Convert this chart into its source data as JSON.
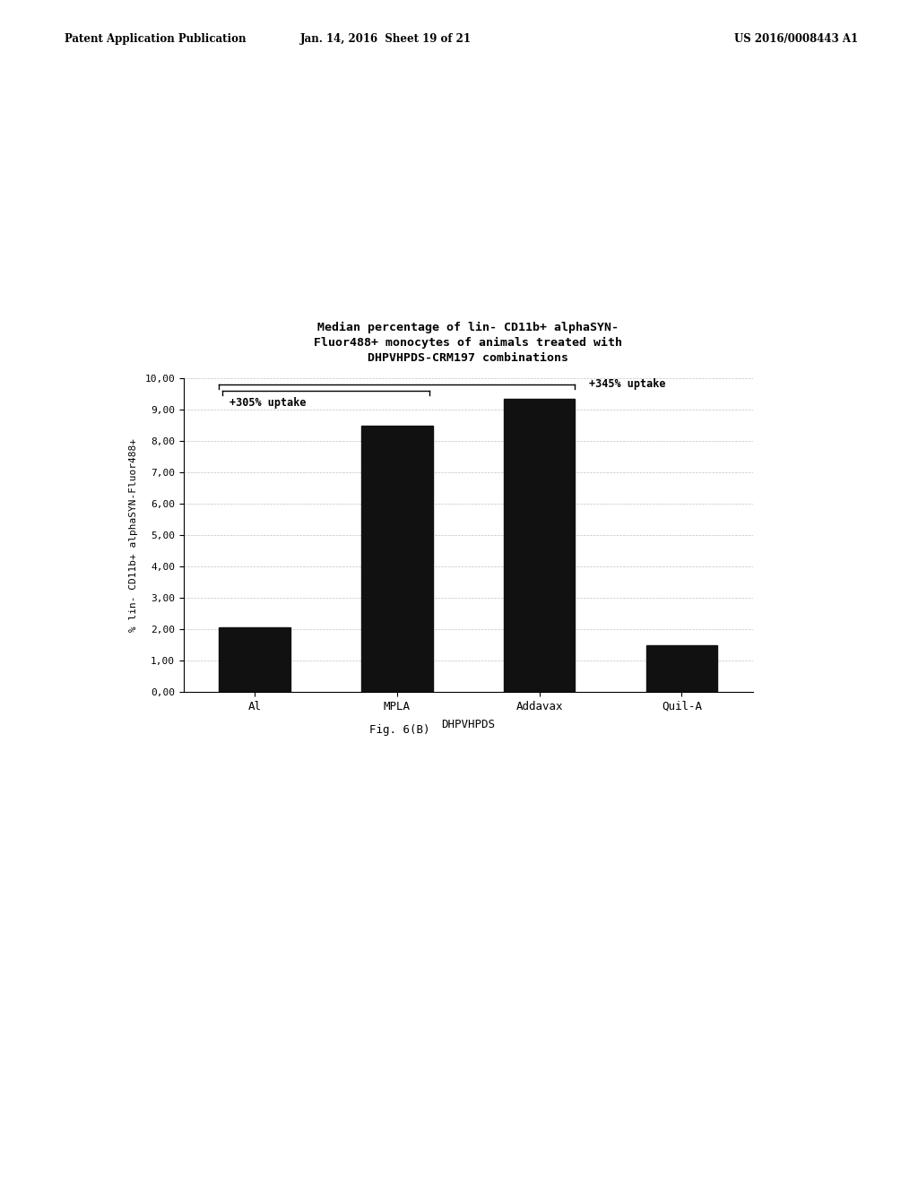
{
  "categories": [
    "Al",
    "MPLA",
    "Addavax",
    "Quil-A"
  ],
  "values": [
    2.05,
    8.5,
    9.35,
    1.5
  ],
  "bar_color": "#111111",
  "title_line1": "Median percentage of lin- CD11b+ alphaSYN-",
  "title_line2": "Fluor488+ monocytes of animals treated with",
  "title_line3": "DHPVHPDS-CRM197 combinations",
  "ylabel": "% lin- CD11b+ alphaSYN-Fluor488+",
  "xlabel": "DHPVHPDS",
  "ylim": [
    0,
    10
  ],
  "yticks": [
    0.0,
    1.0,
    2.0,
    3.0,
    4.0,
    5.0,
    6.0,
    7.0,
    8.0,
    9.0,
    10.0
  ],
  "ytick_labels": [
    "0,00",
    "1,00",
    "2,00",
    "3,00",
    "4,00",
    "5,00",
    "6,00",
    "7,00",
    "8,00",
    "9,00",
    "10,00"
  ],
  "annotation1_text": "+305% uptake",
  "annotation2_text": "+345% uptake",
  "header_left": "Patent Application Publication",
  "header_center": "Jan. 14, 2016  Sheet 19 of 21",
  "header_right": "US 2016/0008443 A1",
  "caption": "Fig. 6(B)",
  "background_color": "#ffffff"
}
